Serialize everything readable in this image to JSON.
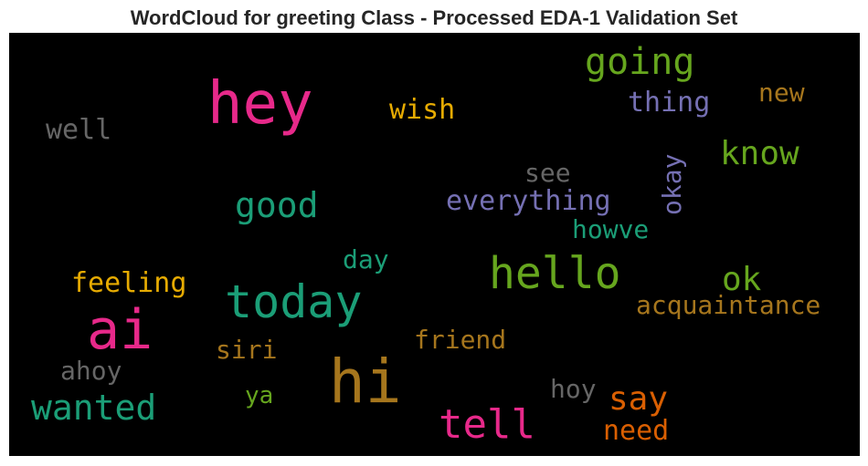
{
  "chart_data": {
    "type": "wordcloud",
    "title": "WordCloud for greeting Class - Processed EDA-1 Validation Set",
    "words": [
      {
        "text": "hey",
        "color": "#e7298a"
      },
      {
        "text": "ai",
        "color": "#e7298a"
      },
      {
        "text": "tell",
        "color": "#e7298a"
      },
      {
        "text": "hi",
        "color": "#a6761d"
      },
      {
        "text": "friend",
        "color": "#a6761d"
      },
      {
        "text": "siri",
        "color": "#a6761d"
      },
      {
        "text": "new",
        "color": "#a6761d"
      },
      {
        "text": "acquaintance",
        "color": "#a6761d"
      },
      {
        "text": "hello",
        "color": "#66a61e"
      },
      {
        "text": "going",
        "color": "#66a61e"
      },
      {
        "text": "know",
        "color": "#66a61e"
      },
      {
        "text": "ok",
        "color": "#66a61e"
      },
      {
        "text": "ya",
        "color": "#66a61e"
      },
      {
        "text": "today",
        "color": "#1b9e77"
      },
      {
        "text": "good",
        "color": "#1b9e77"
      },
      {
        "text": "wanted",
        "color": "#1b9e77"
      },
      {
        "text": "day",
        "color": "#1b9e77"
      },
      {
        "text": "howve",
        "color": "#1b9e77"
      },
      {
        "text": "wish",
        "color": "#e6ab02"
      },
      {
        "text": "feeling",
        "color": "#e6ab02"
      },
      {
        "text": "say",
        "color": "#d95f02"
      },
      {
        "text": "need",
        "color": "#d95f02"
      },
      {
        "text": "thing",
        "color": "#7570b3"
      },
      {
        "text": "everything",
        "color": "#7570b3"
      },
      {
        "text": "okay",
        "color": "#7570b3"
      },
      {
        "text": "well",
        "color": "#666666"
      },
      {
        "text": "see",
        "color": "#666666"
      },
      {
        "text": "ahoy",
        "color": "#666666"
      },
      {
        "text": "hoy",
        "color": "#666666"
      }
    ]
  }
}
